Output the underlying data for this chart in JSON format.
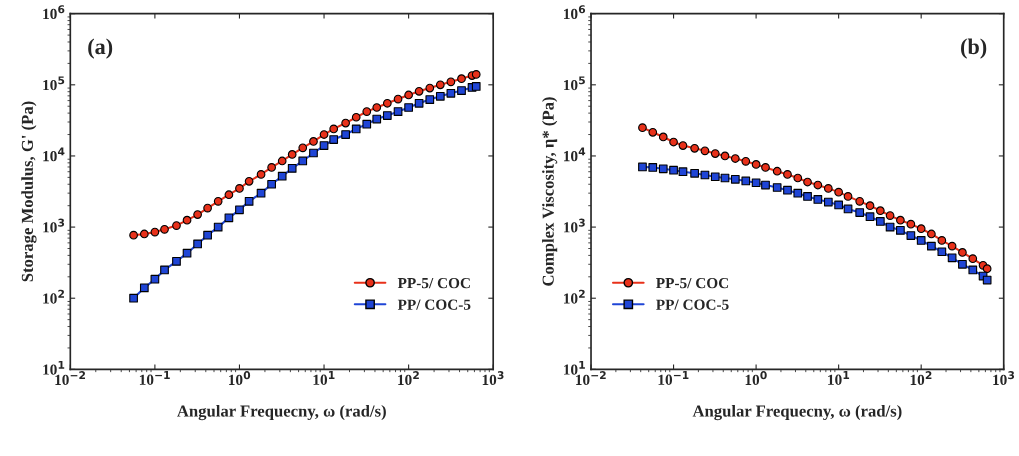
{
  "chart_data": [
    {
      "type": "line",
      "annotations": [
        "(a)"
      ],
      "xlabel": "Angular Frequecny, ω (rad/s)",
      "ylabel": "Storage Modulus, G' (Pa)",
      "log": "xy",
      "grid": false,
      "legend": "bottom right",
      "xlim": [
        0.01,
        1000
      ],
      "ylim": [
        10,
        1000000
      ],
      "xticks": [
        {
          "value": 0.01,
          "label": "10$^{−2}$"
        },
        {
          "value": 0.1,
          "label": "10$^{−1}$"
        },
        {
          "value": 1,
          "label": "10$^{0}$"
        },
        {
          "value": 10,
          "label": "10$^{1}$"
        },
        {
          "value": 100,
          "label": "10$^{2}$"
        },
        {
          "value": 1000,
          "label": "10$^{3}$"
        }
      ],
      "yticks": [
        {
          "value": 10,
          "label": "10$^{1}$"
        },
        {
          "value": 100,
          "label": "10$^{2}$"
        },
        {
          "value": 1000,
          "label": "10$^{3}$"
        },
        {
          "value": 10000,
          "label": "10$^{4}$"
        },
        {
          "value": 100000,
          "label": "10$^{5}$"
        },
        {
          "value": 1000000,
          "label": "10$^{6}$"
        }
      ],
      "x": [
        0.056,
        0.075,
        0.1,
        0.13,
        0.18,
        0.24,
        0.32,
        0.42,
        0.56,
        0.75,
        1.0,
        1.3,
        1.8,
        2.4,
        3.2,
        4.2,
        5.6,
        7.5,
        10,
        13,
        18,
        24,
        32,
        42,
        56,
        75,
        100,
        133,
        178,
        237,
        316,
        422,
        562,
        630
      ],
      "series": [
        {
          "name": "PP-5/ COC",
          "color": "#e8311a",
          "marker": "circle",
          "values": [
            770,
            800,
            850,
            930,
            1050,
            1250,
            1500,
            1850,
            2300,
            2850,
            3500,
            4400,
            5500,
            6900,
            8500,
            10500,
            13000,
            16000,
            20000,
            24000,
            29000,
            35000,
            42000,
            48000,
            55000,
            63000,
            72000,
            81000,
            90000,
            100000,
            110000,
            122000,
            135000,
            140000
          ]
        },
        {
          "name": "PP/ COC-5",
          "color": "#1f45d6",
          "marker": "square",
          "values": [
            100,
            140,
            185,
            250,
            330,
            430,
            580,
            770,
            1000,
            1350,
            1750,
            2300,
            3000,
            4000,
            5200,
            6700,
            8500,
            11000,
            14000,
            17000,
            20000,
            24000,
            28000,
            33000,
            37000,
            42000,
            48000,
            55000,
            62000,
            69000,
            76000,
            83000,
            92000,
            95000
          ]
        }
      ]
    },
    {
      "type": "line",
      "annotations": [
        "(b)"
      ],
      "xlabel": "Angular Frequecny, ω (rad/s)",
      "ylabel": "Complex Viscosity, η* (Pa)",
      "log": "xy",
      "grid": false,
      "legend": "bottom left",
      "xlim": [
        0.01,
        1000
      ],
      "ylim": [
        10,
        1000000
      ],
      "xticks": [
        {
          "value": 0.01,
          "label": "10$^{−2}$"
        },
        {
          "value": 0.1,
          "label": "10$^{−1}$"
        },
        {
          "value": 1,
          "label": "10$^{0}$"
        },
        {
          "value": 10,
          "label": "10$^{1}$"
        },
        {
          "value": 100,
          "label": "10$^{2}$"
        },
        {
          "value": 1000,
          "label": "10$^{3}$"
        }
      ],
      "yticks": [
        {
          "value": 10,
          "label": "10$^{1}$"
        },
        {
          "value": 100,
          "label": "10$^{2}$"
        },
        {
          "value": 1000,
          "label": "10$^{3}$"
        },
        {
          "value": 10000,
          "label": "10$^{4}$"
        },
        {
          "value": 100000,
          "label": "10$^{5}$"
        },
        {
          "value": 1000000,
          "label": "10$^{6}$"
        }
      ],
      "x": [
        0.042,
        0.056,
        0.075,
        0.1,
        0.13,
        0.18,
        0.24,
        0.32,
        0.42,
        0.56,
        0.75,
        1.0,
        1.3,
        1.8,
        2.4,
        3.2,
        4.2,
        5.6,
        7.5,
        10,
        13,
        18,
        24,
        32,
        42,
        56,
        75,
        100,
        133,
        178,
        237,
        316,
        422,
        562,
        630
      ],
      "series": [
        {
          "name": "PP-5/ COC",
          "color": "#e8311a",
          "marker": "circle",
          "values": [
            25000,
            21500,
            18500,
            15700,
            14000,
            12800,
            11800,
            10800,
            10000,
            9200,
            8400,
            7600,
            6900,
            6100,
            5500,
            4900,
            4300,
            3900,
            3500,
            3100,
            2700,
            2300,
            2000,
            1700,
            1450,
            1250,
            1100,
            950,
            800,
            650,
            540,
            440,
            360,
            290,
            260
          ]
        },
        {
          "name": "PP/ COC-5",
          "color": "#1f45d6",
          "marker": "square",
          "values": [
            7000,
            6900,
            6600,
            6300,
            6000,
            5700,
            5400,
            5100,
            4900,
            4700,
            4450,
            4200,
            3900,
            3600,
            3300,
            3000,
            2700,
            2450,
            2250,
            2050,
            1800,
            1600,
            1400,
            1200,
            1000,
            900,
            760,
            650,
            540,
            450,
            370,
            300,
            250,
            205,
            180
          ]
        }
      ]
    }
  ]
}
